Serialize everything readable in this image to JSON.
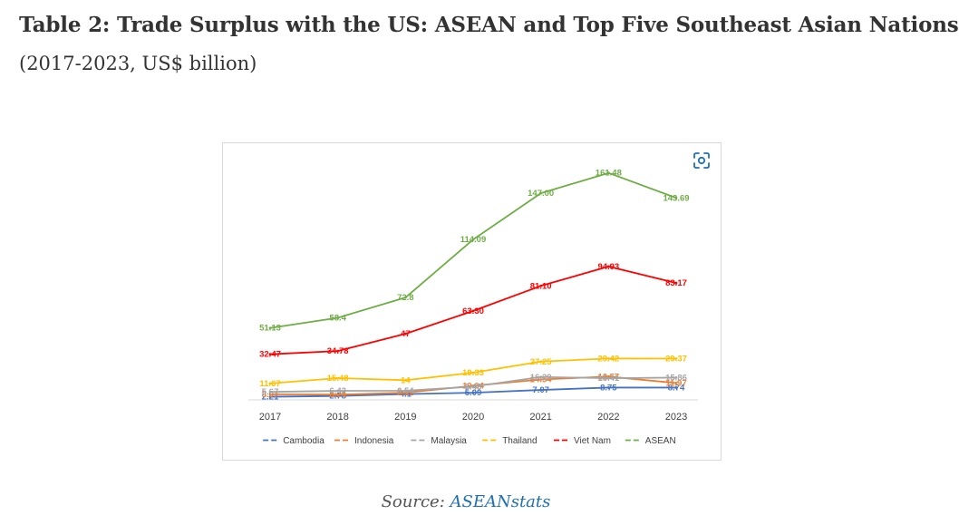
{
  "heading": {
    "title": "Table 2: Trade Surplus with the US: ASEAN and Top Five Southeast Asian Nations",
    "subtitle": "(2017-2023, US$ billion)"
  },
  "expand_icon": "focus-expand-icon",
  "source": {
    "prefix": "Source: ",
    "link": "ASEANstats"
  },
  "chart_data": {
    "type": "line",
    "x": [
      "2017",
      "2018",
      "2019",
      "2020",
      "2021",
      "2022",
      "2023"
    ],
    "ylim": [
      0,
      170
    ],
    "grid": false,
    "legend_position": "bottom",
    "series": [
      {
        "name": "Cambodia",
        "color": "#4472c4",
        "values": [
          2.21,
          2.78,
          4.1,
          5.09,
          7.07,
          8.75,
          8.74
        ],
        "labels": [
          "2.21",
          "2.78",
          "4.1",
          "5.09",
          "7.07",
          "8.75",
          "8.74"
        ]
      },
      {
        "name": "Indonesia",
        "color": "#ed7d31",
        "values": [
          3.97,
          3.74,
          5.11,
          10.04,
          14.54,
          16.57,
          11.97
        ],
        "labels": [
          "3.97",
          "3.74",
          "5.11",
          "10.04",
          "14.54",
          "16.57",
          "11.97"
        ]
      },
      {
        "name": "Malaysia",
        "color": "#a5a5a5",
        "values": [
          5.67,
          6.42,
          6.54,
          9.43,
          16.29,
          15.41,
          15.86
        ],
        "labels": [
          "5.67",
          "6.42",
          "6.54",
          "9.43",
          "16.29",
          "15.41",
          "15.86"
        ]
      },
      {
        "name": "Thailand",
        "color": "#ffc000",
        "values": [
          11.67,
          15.48,
          14,
          19.33,
          27.25,
          29.42,
          29.37
        ],
        "labels": [
          "11.67",
          "15.48",
          "14",
          "19.33",
          "27.25",
          "29.42",
          "29.37"
        ]
      },
      {
        "name": "Viet Nam",
        "color": "#ff0000",
        "values": [
          32.47,
          34.78,
          47,
          63.3,
          81.1,
          94.93,
          83.17
        ],
        "labels": [
          "32.47",
          "34.78",
          "47",
          "63.30",
          "81.10",
          "94.93",
          "83.17"
        ]
      },
      {
        "name": "ASEAN",
        "color": "#70ad47",
        "values": [
          51.13,
          58.4,
          72.8,
          114.09,
          147.0,
          161.48,
          143.69
        ],
        "labels": [
          "51.13",
          "58.4",
          "72.8",
          "114.09",
          "147.00",
          "161.48",
          "143.69"
        ]
      }
    ]
  }
}
